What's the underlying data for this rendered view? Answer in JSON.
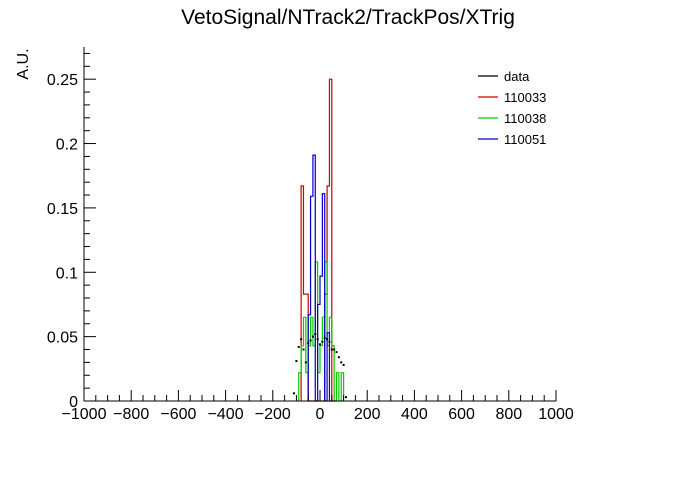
{
  "chart_data": {
    "type": "histogram",
    "title": "VetoSignal/NTrack2/TrackPos/XTrig",
    "xlabel": "",
    "ylabel": "A.U.",
    "xlim": [
      -1000,
      1000
    ],
    "ylim": [
      0,
      0.275
    ],
    "x_ticks": [
      -1000,
      -800,
      -600,
      -400,
      -200,
      0,
      200,
      400,
      600,
      800,
      1000
    ],
    "x_tick_labels": [
      "−1000",
      "−800",
      "−600",
      "−400",
      "−200",
      "0",
      "200",
      "400",
      "600",
      "800",
      "1000"
    ],
    "y_ticks": [
      0,
      0.05,
      0.1,
      0.15,
      0.2,
      0.25
    ],
    "y_tick_labels": [
      "0",
      "0.05",
      "0.1",
      "0.15",
      "0.2",
      "0.25"
    ],
    "grid": false,
    "legend_position": "top-right",
    "series": [
      {
        "name": "data",
        "style": "markers",
        "color": "#000000",
        "x": [
          -110,
          -100,
          -90,
          -80,
          -70,
          -60,
          -50,
          -40,
          -30,
          -20,
          -10,
          0,
          10,
          20,
          30,
          40,
          50,
          60,
          70,
          80,
          90,
          100,
          110
        ],
        "values": [
          0.006,
          0.031,
          0.042,
          0.048,
          0.04,
          0.03,
          0.045,
          0.047,
          0.05,
          0.052,
          0.048,
          0.044,
          0.046,
          0.049,
          0.048,
          0.046,
          0.04,
          0.04,
          0.038,
          0.034,
          0.03,
          0.028,
          0.003
        ]
      },
      {
        "name": "110033",
        "style": "step",
        "color": "#cc0000",
        "bin_edges": [
          -80,
          -70,
          -60,
          -50,
          -40,
          -30,
          -20,
          -10,
          0,
          10,
          20,
          30,
          40,
          50,
          60,
          70
        ],
        "values": [
          0.167,
          0.083,
          0.083,
          0.0,
          0.0,
          0.0,
          0.0,
          0.0,
          0.0,
          0.0,
          0.083,
          0.167,
          0.25,
          0.0,
          0.0
        ]
      },
      {
        "name": "110038",
        "style": "step",
        "color": "#00cc00",
        "bin_edges": [
          -90,
          -80,
          -70,
          -60,
          -50,
          -40,
          -30,
          -20,
          -10,
          0,
          10,
          20,
          30,
          40,
          50,
          60,
          70,
          80,
          90,
          100
        ],
        "values": [
          0.022,
          0.043,
          0.065,
          0.022,
          0.043,
          0.065,
          0.043,
          0.108,
          0.022,
          0.043,
          0.065,
          0.108,
          0.043,
          0.065,
          0.043,
          0.0,
          0.022,
          0.0,
          0.022
        ]
      },
      {
        "name": "110051",
        "style": "step",
        "color": "#0000cc",
        "bin_edges": [
          -50,
          -40,
          -30,
          -20,
          -10,
          0,
          10,
          20,
          30,
          40,
          50
        ],
        "values": [
          0.067,
          0.159,
          0.191,
          0.0,
          0.075,
          0.097,
          0.161,
          0.0,
          0.053,
          0.0
        ]
      }
    ]
  }
}
